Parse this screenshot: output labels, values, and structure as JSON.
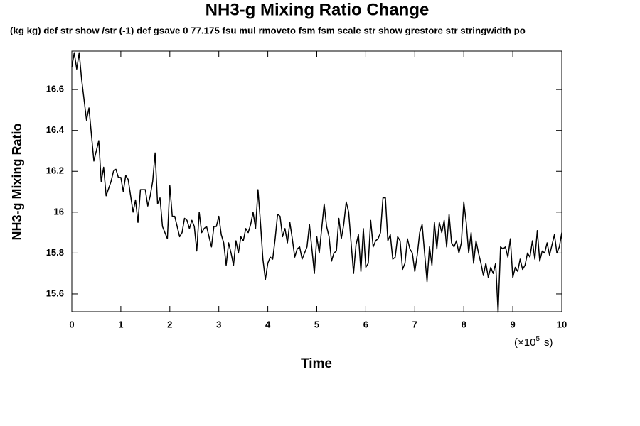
{
  "chart_data": {
    "type": "line",
    "title": "NH3-g Mixing Ratio Change",
    "subtitle": "(kg kg) def str show /str (-1) def gsave 0 77.175 fsu mul rmoveto fsm fsm scale str show grestore str stringwidth po",
    "x_label": "Time",
    "y_label": "NH3-g Mixing Ratio",
    "x_unit": [
      "(×10",
      "5",
      "s)"
    ],
    "color": "#000000",
    "xlim": [
      0,
      10
    ],
    "ylim": [
      15.513,
      16.788
    ],
    "xticks": [
      0,
      1,
      2,
      3,
      4,
      5,
      6,
      7,
      8,
      9,
      10
    ],
    "yticks": [
      15.6,
      15.8,
      16.0,
      16.2,
      16.4,
      16.6
    ],
    "x": [
      0,
      0.05,
      0.1,
      0.15,
      0.2,
      0.3,
      0.35,
      0.45,
      0.55,
      0.6,
      0.65,
      0.7,
      0.8,
      0.85,
      0.9,
      0.95,
      1.0,
      1.05,
      1.1,
      1.15,
      1.25,
      1.3,
      1.35,
      1.4,
      1.5,
      1.55,
      1.6,
      1.65,
      1.7,
      1.75,
      1.8,
      1.85,
      1.9,
      1.95,
      2.0,
      2.05,
      2.1,
      2.15,
      2.2,
      2.25,
      2.3,
      2.35,
      2.4,
      2.45,
      2.5,
      2.55,
      2.6,
      2.65,
      2.7,
      2.75,
      2.8,
      2.85,
      2.9,
      2.95,
      3.0,
      3.05,
      3.1,
      3.15,
      3.2,
      3.25,
      3.3,
      3.35,
      3.4,
      3.45,
      3.5,
      3.55,
      3.6,
      3.65,
      3.7,
      3.75,
      3.8,
      3.85,
      3.9,
      3.95,
      4.0,
      4.05,
      4.1,
      4.15,
      4.2,
      4.25,
      4.3,
      4.35,
      4.4,
      4.45,
      4.5,
      4.55,
      4.6,
      4.65,
      4.7,
      4.75,
      4.8,
      4.85,
      4.9,
      4.95,
      5.0,
      5.05,
      5.1,
      5.15,
      5.2,
      5.25,
      5.3,
      5.35,
      5.4,
      5.45,
      5.5,
      5.55,
      5.6,
      5.65,
      5.7,
      5.75,
      5.8,
      5.85,
      5.9,
      5.95,
      6.0,
      6.05,
      6.1,
      6.15,
      6.2,
      6.25,
      6.3,
      6.35,
      6.4,
      6.45,
      6.5,
      6.55,
      6.6,
      6.65,
      6.7,
      6.75,
      6.8,
      6.85,
      6.9,
      6.95,
      7.0,
      7.05,
      7.1,
      7.15,
      7.2,
      7.25,
      7.3,
      7.35,
      7.4,
      7.45,
      7.5,
      7.55,
      7.6,
      7.65,
      7.7,
      7.75,
      7.8,
      7.85,
      7.9,
      7.95,
      8.0,
      8.05,
      8.1,
      8.15,
      8.2,
      8.25,
      8.3,
      8.35,
      8.4,
      8.45,
      8.5,
      8.55,
      8.6,
      8.65,
      8.7,
      8.75,
      8.8,
      8.85,
      8.9,
      8.95,
      9.0,
      9.05,
      9.1,
      9.15,
      9.2,
      9.25,
      9.3,
      9.35,
      9.4,
      9.45,
      9.5,
      9.55,
      9.6,
      9.65,
      9.7,
      9.75,
      9.8,
      9.85,
      9.9,
      9.95,
      10.0
    ],
    "values": [
      16.71,
      16.78,
      16.7,
      16.78,
      16.65,
      16.45,
      16.51,
      16.25,
      16.35,
      16.15,
      16.22,
      16.08,
      16.15,
      16.2,
      16.21,
      16.17,
      16.17,
      16.1,
      16.18,
      16.16,
      16.0,
      16.06,
      15.95,
      16.11,
      16.11,
      16.03,
      16.08,
      16.15,
      16.29,
      16.04,
      16.07,
      15.93,
      15.9,
      15.87,
      16.13,
      15.98,
      15.98,
      15.93,
      15.88,
      15.9,
      15.97,
      15.96,
      15.92,
      15.96,
      15.93,
      15.81,
      16.0,
      15.9,
      15.92,
      15.93,
      15.88,
      15.83,
      15.93,
      15.93,
      15.98,
      15.89,
      15.85,
      15.74,
      15.85,
      15.8,
      15.74,
      15.86,
      15.8,
      15.88,
      15.86,
      15.92,
      15.9,
      15.94,
      16.0,
      15.92,
      16.11,
      15.95,
      15.77,
      15.67,
      15.75,
      15.78,
      15.77,
      15.87,
      15.99,
      15.98,
      15.88,
      15.92,
      15.85,
      15.95,
      15.87,
      15.78,
      15.82,
      15.83,
      15.77,
      15.8,
      15.83,
      15.94,
      15.82,
      15.7,
      15.88,
      15.8,
      15.92,
      16.04,
      15.93,
      15.88,
      15.76,
      15.8,
      15.81,
      15.97,
      15.87,
      15.94,
      16.05,
      16.0,
      15.85,
      15.7,
      15.84,
      15.89,
      15.71,
      15.92,
      15.73,
      15.75,
      15.96,
      15.83,
      15.86,
      15.87,
      15.9,
      16.07,
      16.07,
      15.86,
      15.89,
      15.77,
      15.78,
      15.88,
      15.86,
      15.72,
      15.75,
      15.87,
      15.82,
      15.8,
      15.71,
      15.79,
      15.9,
      15.94,
      15.8,
      15.66,
      15.83,
      15.74,
      15.95,
      15.82,
      15.95,
      15.9,
      15.96,
      15.83,
      15.99,
      15.85,
      15.83,
      15.86,
      15.8,
      15.85,
      16.05,
      15.95,
      15.8,
      15.9,
      15.75,
      15.86,
      15.8,
      15.75,
      15.69,
      15.75,
      15.68,
      15.73,
      15.7,
      15.75,
      15.51,
      15.83,
      15.82,
      15.83,
      15.78,
      15.87,
      15.68,
      15.73,
      15.71,
      15.77,
      15.72,
      15.74,
      15.8,
      15.78,
      15.86,
      15.77,
      15.91,
      15.76,
      15.81,
      15.8,
      15.85,
      15.79,
      15.84,
      15.89,
      15.8,
      15.83,
      15.9
    ]
  }
}
